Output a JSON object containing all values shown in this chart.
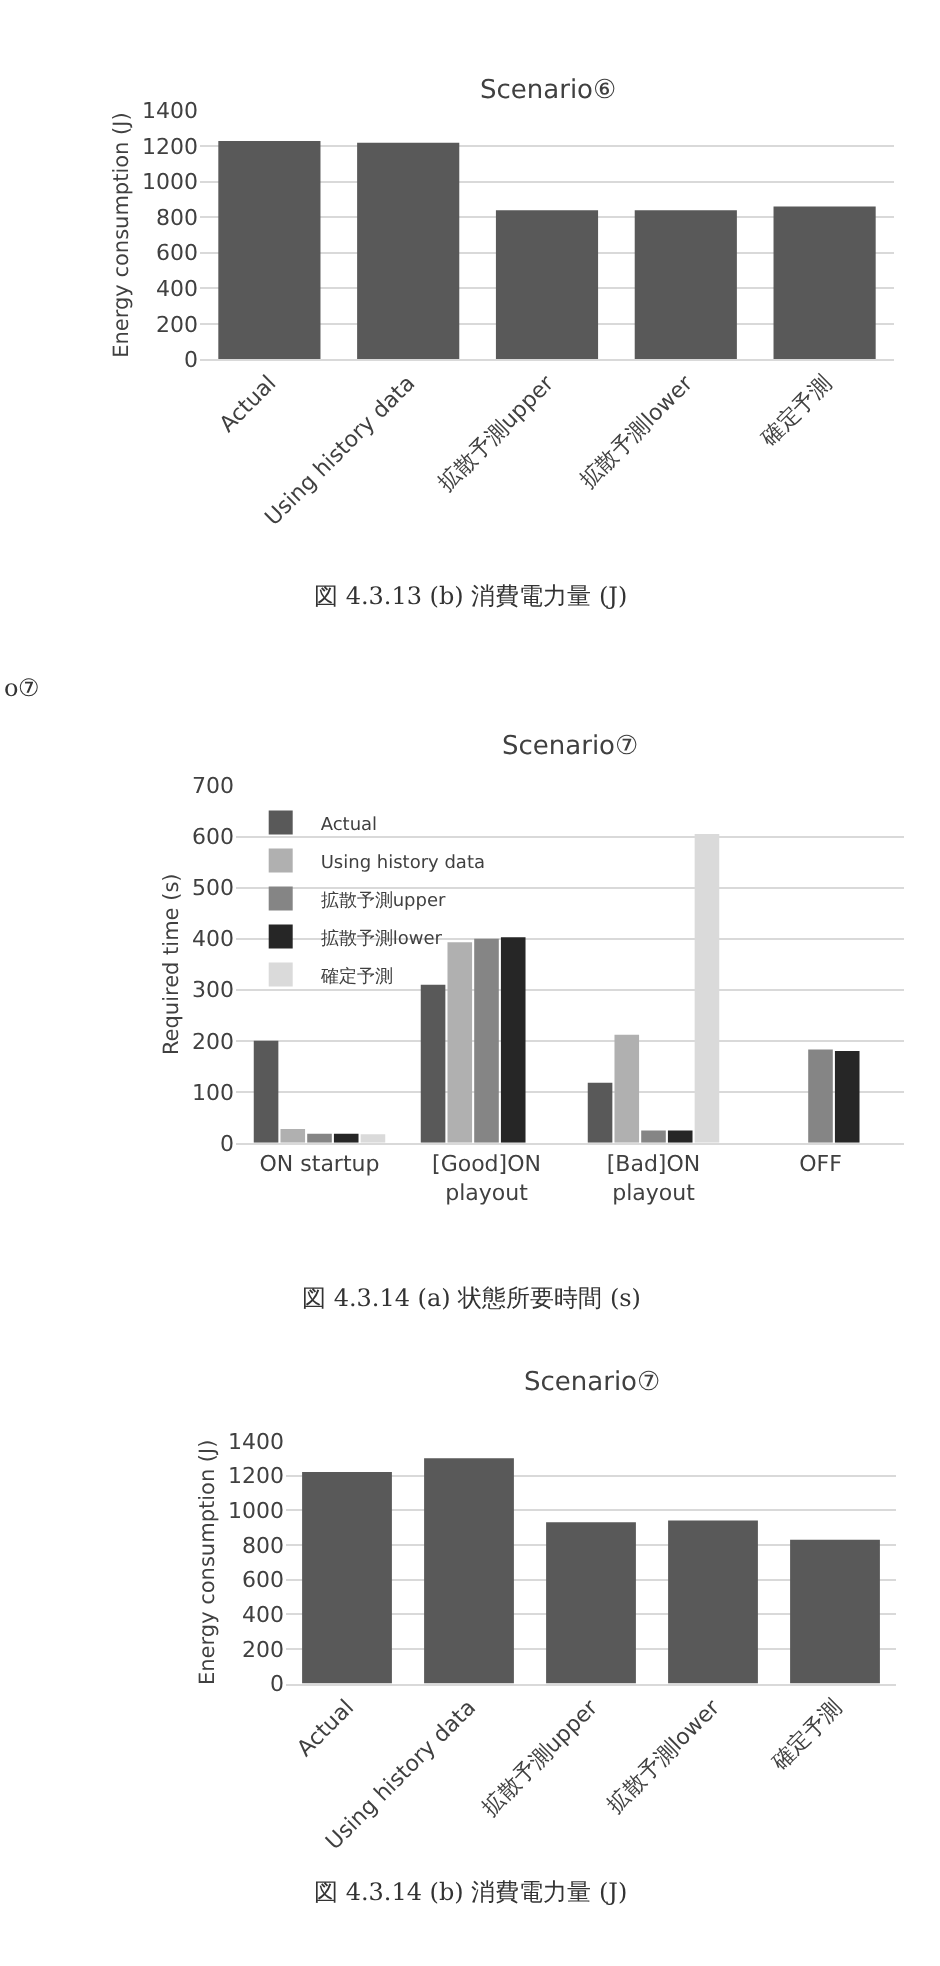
{
  "chart_data": [
    {
      "type": "bar",
      "title": "Scenario⑥",
      "ylabel": "Energy consumption (J)",
      "categories": [
        "Actual",
        "Using history data",
        "拡散予測upper",
        "拡散予測lower",
        "確定予測"
      ],
      "series": [
        {
          "color": "#595959",
          "values": [
            1230,
            1220,
            840,
            840,
            860
          ]
        }
      ],
      "ylim": [
        0,
        1400
      ],
      "yticks": [
        0,
        200,
        400,
        600,
        800,
        1000,
        1200,
        1400
      ],
      "grid": "y",
      "legend": false,
      "annotations": [
        "図 4.3.13 (b) 消費電力量 (J)",
        "o⑦"
      ]
    },
    {
      "type": "bar",
      "title": "Scenario⑦",
      "ylabel": "Required time (s)",
      "categories": [
        "ON startup",
        "[Good]ON playout",
        "[Bad]ON playout",
        "OFF"
      ],
      "series": [
        {
          "name": "Actual",
          "color": "#595959",
          "values": [
            200,
            310,
            118,
            null
          ]
        },
        {
          "name": "Using history data",
          "color": "#b0b0b0",
          "values": [
            27,
            393,
            212,
            null
          ]
        },
        {
          "name": "拡散予測upper",
          "color": "#858585",
          "values": [
            18,
            400,
            24,
            183
          ]
        },
        {
          "name": "拡散予測lower",
          "color": "#262626",
          "values": [
            18,
            403,
            24,
            180
          ]
        },
        {
          "name": "確定予測",
          "color": "#dadada",
          "values": [
            17,
            null,
            605,
            null
          ]
        }
      ],
      "ylim": [
        0,
        700
      ],
      "yticks": [
        0,
        100,
        200,
        300,
        400,
        500,
        600,
        700
      ],
      "grid": "y",
      "legend": "top left",
      "annotations": [
        "図 4.3.14 (a) 状態所要時間 (s)"
      ]
    },
    {
      "type": "bar",
      "title": "Scenario⑦",
      "ylabel": "Energy consumption (J)",
      "categories": [
        "Actual",
        "Using history data",
        "拡散予測upper",
        "拡散予測lower",
        "確定予測"
      ],
      "series": [
        {
          "color": "#595959",
          "values": [
            1220,
            1300,
            930,
            940,
            830
          ]
        }
      ],
      "ylim": [
        0,
        1400
      ],
      "yticks": [
        0,
        200,
        400,
        600,
        800,
        1000,
        1200,
        1400
      ],
      "grid": "y",
      "legend": false,
      "annotations": [
        "図 4.3.14 (b) 消費電力量 (J)"
      ]
    }
  ]
}
